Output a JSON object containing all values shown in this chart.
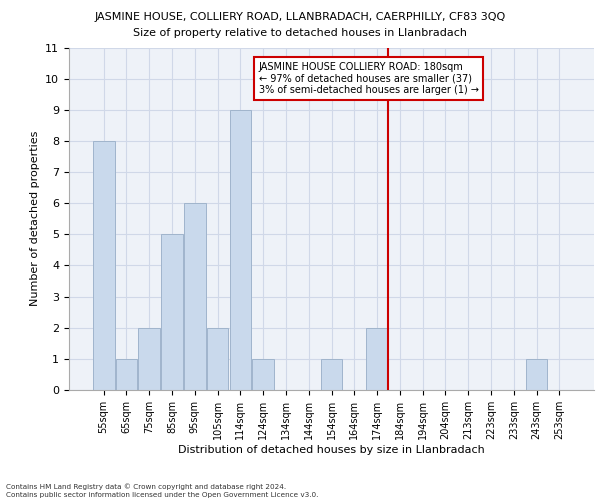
{
  "title_line1": "JASMINE HOUSE, COLLIERY ROAD, LLANBRADACH, CAERPHILLY, CF83 3QQ",
  "title_line2": "Size of property relative to detached houses in Llanbradach",
  "xlabel": "Distribution of detached houses by size in Llanbradach",
  "ylabel": "Number of detached properties",
  "footer_line1": "Contains HM Land Registry data © Crown copyright and database right 2024.",
  "footer_line2": "Contains public sector information licensed under the Open Government Licence v3.0.",
  "bar_labels": [
    "55sqm",
    "65sqm",
    "75sqm",
    "85sqm",
    "95sqm",
    "105sqm",
    "114sqm",
    "124sqm",
    "134sqm",
    "144sqm",
    "154sqm",
    "164sqm",
    "174sqm",
    "184sqm",
    "194sqm",
    "204sqm",
    "213sqm",
    "223sqm",
    "233sqm",
    "243sqm",
    "253sqm"
  ],
  "bar_values": [
    8,
    1,
    2,
    5,
    6,
    2,
    9,
    1,
    0,
    0,
    1,
    0,
    2,
    0,
    0,
    0,
    0,
    0,
    0,
    1,
    0
  ],
  "bar_color": "#c9d9ec",
  "bar_edge_color": "#a0b4cc",
  "grid_color": "#d0d8e8",
  "background_color": "#eef2f8",
  "annotation_text": "JASMINE HOUSE COLLIERY ROAD: 180sqm\n← 97% of detached houses are smaller (37)\n3% of semi-detached houses are larger (1) →",
  "annotation_box_color": "#ffffff",
  "annotation_box_edge": "#cc0000",
  "vline_color": "#cc0000",
  "ylim": [
    0,
    11
  ],
  "yticks": [
    0,
    1,
    2,
    3,
    4,
    5,
    6,
    7,
    8,
    9,
    10,
    11
  ]
}
